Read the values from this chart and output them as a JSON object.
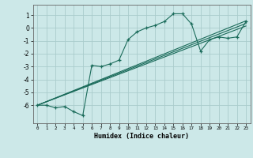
{
  "title": "",
  "xlabel": "Humidex (Indice chaleur)",
  "background_color": "#cce8e8",
  "grid_color": "#aacccc",
  "line_color": "#1a6b5a",
  "xlim": [
    -0.5,
    23.5
  ],
  "ylim": [
    -7.4,
    1.8
  ],
  "xticks": [
    0,
    1,
    2,
    3,
    4,
    5,
    6,
    7,
    8,
    9,
    10,
    11,
    12,
    13,
    14,
    15,
    16,
    17,
    18,
    19,
    20,
    21,
    22,
    23
  ],
  "yticks": [
    1,
    0,
    -1,
    -2,
    -3,
    -4,
    -5,
    -6
  ],
  "line1_x": [
    0,
    1,
    2,
    3,
    4,
    5,
    6,
    7,
    8,
    9,
    10,
    11,
    12,
    13,
    14,
    15,
    16,
    17,
    18,
    19,
    20,
    21,
    22,
    23
  ],
  "line1_y": [
    -6.0,
    -6.0,
    -6.2,
    -6.1,
    -6.5,
    -6.8,
    -2.9,
    -3.0,
    -2.8,
    -2.5,
    -0.9,
    -0.3,
    0.0,
    0.2,
    0.5,
    1.1,
    1.1,
    0.3,
    -1.8,
    -0.9,
    -0.7,
    -0.8,
    -0.7,
    0.5
  ],
  "line2_x": [
    0,
    23
  ],
  "line2_y": [
    -6.0,
    0.55
  ],
  "line3_x": [
    0,
    23
  ],
  "line3_y": [
    -6.0,
    0.35
  ],
  "line4_x": [
    0,
    23
  ],
  "line4_y": [
    -6.0,
    0.15
  ]
}
